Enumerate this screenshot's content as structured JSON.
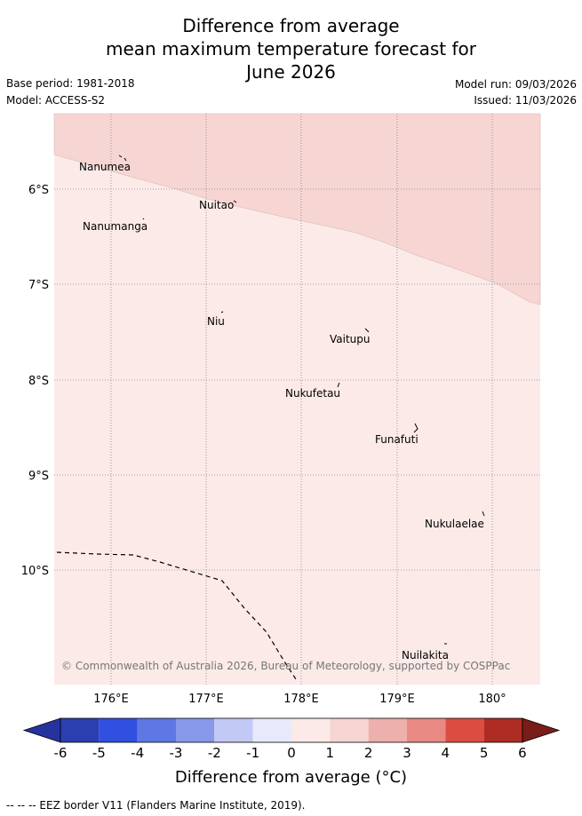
{
  "title": {
    "line1": "Difference from average",
    "line2": "mean maximum temperature forecast for",
    "line3": "June 2026"
  },
  "meta": {
    "base_period": "Base period: 1981-2018",
    "model": "Model: ACCESS-S2",
    "model_run": "Model run: 09/03/2026",
    "issued": "Issued: 11/03/2026"
  },
  "map": {
    "lat_labels": [
      "6°S",
      "7°S",
      "8°S",
      "9°S",
      "10°S"
    ],
    "lon_labels": [
      "176°E",
      "177°E",
      "178°E",
      "179°E",
      "180°"
    ],
    "places": [
      "Nanumea",
      "Nuitao",
      "Nanumanga",
      "Niu",
      "Vaitupu",
      "Nukufetau",
      "Funafuti",
      "Nukulaelae",
      "Nuilakita"
    ],
    "copyright": "© Commonwealth of Australia 2026, Bureau of Meteorology, supported by COSPPac",
    "fill_colors": {
      "class_1_2": "#f6d5d3",
      "class_0_1": "#fbeae8"
    }
  },
  "colorbar": {
    "ticks": [
      "-6",
      "-5",
      "-4",
      "-3",
      "-2",
      "-1",
      "0",
      "1",
      "2",
      "3",
      "4",
      "5",
      "6"
    ],
    "colors": [
      "#26339e",
      "#2b3fb0",
      "#3150e0",
      "#5f77e5",
      "#8899ea",
      "#c2c9f4",
      "#e8eafb",
      "#fbeae8",
      "#f6d5d3",
      "#edb0ac",
      "#e88a83",
      "#db4d40",
      "#ae2c24",
      "#7a1d1a"
    ],
    "label": "Difference from average (°C)"
  },
  "footer": "-- -- -- EEZ border V11 (Flanders Marine Institute, 2019)."
}
